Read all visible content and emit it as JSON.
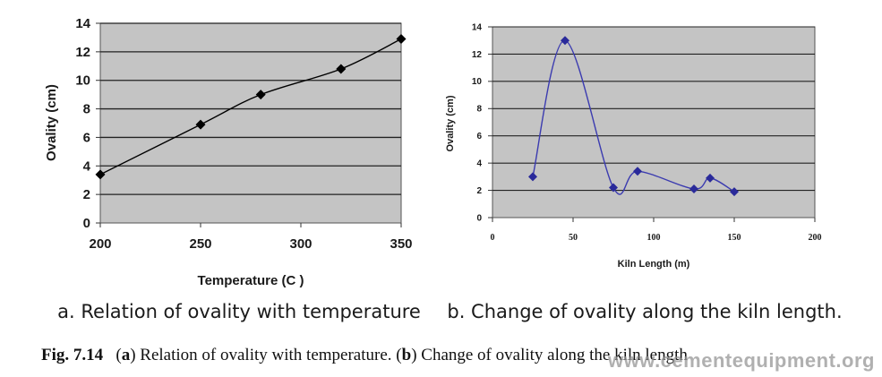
{
  "chart_data": [
    {
      "type": "line",
      "title": "",
      "subtitle": "a. Relation of ovality with temperature",
      "xlabel": "Temperature (C )",
      "ylabel": "Ovality (cm)",
      "xlim": [
        200,
        350
      ],
      "ylim": [
        0,
        14
      ],
      "x_ticks": [
        "200",
        "250",
        "300",
        "350"
      ],
      "y_ticks": [
        "0",
        "2",
        "4",
        "6",
        "8",
        "10",
        "12",
        "14"
      ],
      "grid": true,
      "series": [
        {
          "x": [
            200,
            250,
            280,
            320,
            350
          ],
          "y": [
            3.4,
            6.9,
            9.0,
            10.8,
            12.9
          ]
        }
      ],
      "colors": {
        "plot_bg": "#c4c4c4",
        "line": "#000000",
        "marker": "#000000"
      }
    },
    {
      "type": "line",
      "title": "",
      "subtitle": "b. Change of ovality along the kiln length.",
      "xlabel": "Kiln Length (m)",
      "ylabel": "Ovality (cm)",
      "xlim": [
        0,
        200
      ],
      "ylim": [
        0,
        14
      ],
      "x_ticks": [
        "0",
        "50",
        "100",
        "150",
        "200"
      ],
      "y_ticks": [
        "0",
        "2",
        "4",
        "6",
        "8",
        "10",
        "12",
        "14"
      ],
      "grid": true,
      "series": [
        {
          "x": [
            25,
            45,
            75,
            90,
            125,
            135,
            150
          ],
          "y": [
            3.0,
            13.0,
            2.2,
            3.4,
            2.1,
            2.9,
            1.9
          ]
        }
      ],
      "colors": {
        "plot_bg": "#c4c4c4",
        "line": "#3b3bb0",
        "marker": "#2a2a9a"
      }
    }
  ],
  "caption": {
    "label": "Fig. 7.14",
    "text_a_label": "a",
    "text_a": " Relation of ovality with temperature. (",
    "text_b_label": "b",
    "text_b": ") Change of ovality along the kiln length"
  },
  "watermark": "www.cementequipment.org"
}
